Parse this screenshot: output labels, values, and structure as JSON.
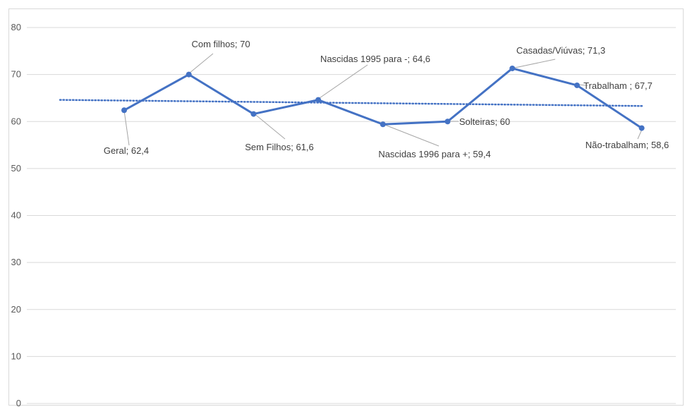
{
  "chart_data": {
    "type": "line",
    "title": "",
    "xlabel": "",
    "ylabel": "",
    "ylim": [
      0,
      80
    ],
    "y_ticks": [
      0,
      10,
      20,
      30,
      40,
      50,
      60,
      70,
      80
    ],
    "grid": true,
    "legend": "none",
    "categories": [
      "Geral",
      "Com filhos",
      "Sem Filhos",
      "Nascidas 1995 para -",
      "Nascidas 1996 para +",
      "Solteiras",
      "Casadas/Viúvas",
      "Trabalham ",
      "Não-trabalham"
    ],
    "series": [
      {
        "values": [
          62.4,
          70,
          61.6,
          64.6,
          59.4,
          60,
          71.3,
          67.7,
          58.6
        ],
        "color": "#4472c4",
        "data_labels": [
          "Geral; 62,4",
          "Com filhos; 70",
          "Sem Filhos; 61,6",
          "Nascidas 1995 para -; 64,6",
          "Nascidas 1996 para +; 59,4",
          "Solteiras; 60",
          "Casadas/Viúvas; 71,3",
          "Trabalham ; 67,7",
          "Não-trabalham; 58,6"
        ]
      }
    ],
    "trendline": {
      "type": "linear",
      "style": "dotted",
      "color": "#4472c4",
      "start": 64.6,
      "end": 63.3
    }
  }
}
